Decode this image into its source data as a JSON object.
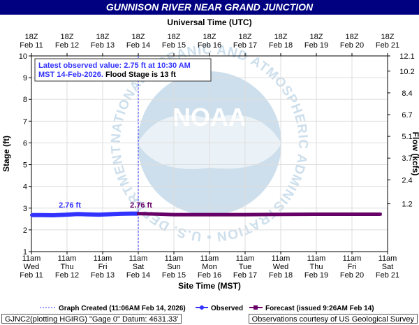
{
  "title": "GUNNISON RIVER NEAR GRAND JUNCTION",
  "top_axis_title": "Universal Time (UTC)",
  "bottom_axis_title": "Site Time (MST)",
  "left_axis_title": "Stage (ft)",
  "right_axis_title": "Flow (kcfs)",
  "info_box": {
    "line1": "Latest observed value: 2.75 ft at 10:30 AM",
    "line2_date": "MST 14-Feb-2026.",
    "line2_flood": " Flood Stage is 13 ft"
  },
  "legend": {
    "graph_created": "Graph Created (11:06AM Feb 14, 2026)",
    "observed": "Observed",
    "forecast": "Forecast (issued 9:26AM Feb 14)"
  },
  "footer": {
    "left": "GJNC2(plotting HGIRG) \"Gage 0\" Datum: 4631.33'",
    "right": "Observations courtesy of US Geological Survey"
  },
  "watermark": {
    "center": "NOAA",
    "ring_text": "NATIONAL OCEANIC AND ATMOSPHERIC ADMINISTRATION • U.S. DEPARTMENT OF COMMERCE"
  },
  "colors": {
    "title_bg": "#000080",
    "observed": "#3333ff",
    "forecast": "#660066",
    "graph_created": "#3333ff",
    "grid": "#dddddd",
    "watermark": "#c8dcea"
  },
  "chart_data": {
    "type": "line",
    "title": "GUNNISON RIVER NEAR GRAND JUNCTION",
    "xlabel": "Site Time (MST)",
    "ylabel": "Stage (ft)",
    "y2label": "Flow (kcfs)",
    "x_range": [
      "Feb 11 11am",
      "Feb 21 11am"
    ],
    "ylim": [
      1,
      10
    ],
    "y_ticks": [
      1,
      2,
      3,
      4,
      5,
      6,
      7,
      8,
      9,
      10
    ],
    "y2_ticks": [
      {
        "stage": 10,
        "label": "12.1"
      },
      {
        "stage": 9.3,
        "label": "10.2"
      },
      {
        "stage": 8.3,
        "label": "8.4"
      },
      {
        "stage": 7.3,
        "label": "6.7"
      },
      {
        "stage": 6.3,
        "label": "5.1"
      },
      {
        "stage": 5.3,
        "label": "3.7"
      },
      {
        "stage": 4.3,
        "label": "2.4"
      },
      {
        "stage": 3.2,
        "label": "1.2"
      }
    ],
    "bottom_ticks": [
      [
        "11am",
        "Wed",
        "Feb 11"
      ],
      [
        "11am",
        "Thu",
        "Feb 12"
      ],
      [
        "11am",
        "Fri",
        "Feb 13"
      ],
      [
        "11am",
        "Sat",
        "Feb 14"
      ],
      [
        "11am",
        "Sun",
        "Feb 15"
      ],
      [
        "11am",
        "Mon",
        "Feb 16"
      ],
      [
        "11am",
        "Tue",
        "Feb 17"
      ],
      [
        "11am",
        "Wed",
        "Feb 18"
      ],
      [
        "11am",
        "Thu",
        "Feb 19"
      ],
      [
        "11am",
        "Fri",
        "Feb 20"
      ],
      [
        "11am",
        "Sat",
        "Feb 21"
      ]
    ],
    "top_ticks": [
      [
        "18Z",
        "Feb 11"
      ],
      [
        "18Z",
        "Feb 12"
      ],
      [
        "18Z",
        "Feb 13"
      ],
      [
        "18Z",
        "Feb 14"
      ],
      [
        "18Z",
        "Feb 15"
      ],
      [
        "18Z",
        "Feb 16"
      ],
      [
        "18Z",
        "Feb 17"
      ],
      [
        "18Z",
        "Feb 18"
      ],
      [
        "18Z",
        "Feb 19"
      ],
      [
        "18Z",
        "Feb 20"
      ],
      [
        "18Z",
        "Feb 21"
      ]
    ],
    "graph_created_day": 3.0,
    "series": [
      {
        "name": "Observed",
        "points": [
          [
            0.0,
            2.68
          ],
          [
            0.3,
            2.68
          ],
          [
            0.6,
            2.67
          ],
          [
            0.9,
            2.69
          ],
          [
            1.0,
            2.7
          ],
          [
            1.3,
            2.73
          ],
          [
            1.6,
            2.71
          ],
          [
            1.9,
            2.7
          ],
          [
            2.2,
            2.72
          ],
          [
            2.5,
            2.74
          ],
          [
            2.8,
            2.75
          ],
          [
            3.0,
            2.75
          ]
        ]
      },
      {
        "name": "Forecast",
        "points": [
          [
            3.0,
            2.75
          ],
          [
            3.5,
            2.73
          ],
          [
            4.0,
            2.7
          ],
          [
            5.0,
            2.7
          ],
          [
            6.0,
            2.7
          ],
          [
            7.0,
            2.71
          ],
          [
            8.0,
            2.72
          ],
          [
            9.0,
            2.72
          ],
          [
            9.8,
            2.72
          ]
        ]
      }
    ],
    "annotations": [
      {
        "text": "2.76 ft",
        "x": 1.0,
        "y": 2.76,
        "color": "#3333ff"
      },
      {
        "text": "2.76 ft",
        "x": 3.0,
        "y": 2.76,
        "color": "#660066"
      }
    ]
  }
}
